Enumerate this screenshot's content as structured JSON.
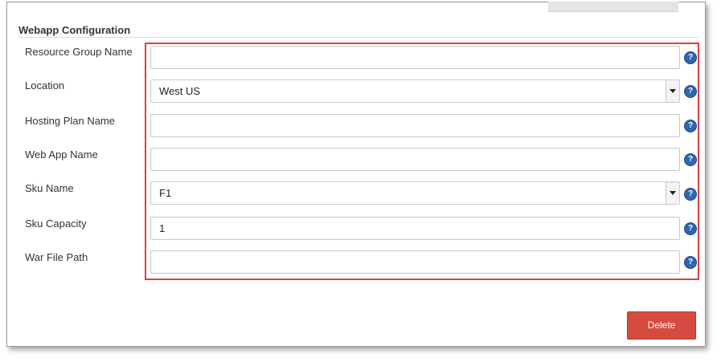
{
  "section": {
    "title": "Webapp Configuration"
  },
  "fields": [
    {
      "label": "Resource Group Name",
      "value": "",
      "type": "text"
    },
    {
      "label": "Location",
      "value": "West US",
      "type": "select"
    },
    {
      "label": "Hosting Plan Name",
      "value": "",
      "type": "text"
    },
    {
      "label": "Web App Name",
      "value": "",
      "type": "text"
    },
    {
      "label": "Sku Name",
      "value": "F1",
      "type": "select"
    },
    {
      "label": "Sku Capacity",
      "value": "1",
      "type": "text"
    },
    {
      "label": "War File Path",
      "value": "",
      "type": "text"
    }
  ],
  "help_icon": {
    "glyph": "?",
    "icon": "help-icon"
  },
  "actions": {
    "delete_label": "Delete"
  },
  "colors": {
    "highlight": "#d9413e",
    "delete": "#d54b3d",
    "help": "#2f67ae"
  }
}
